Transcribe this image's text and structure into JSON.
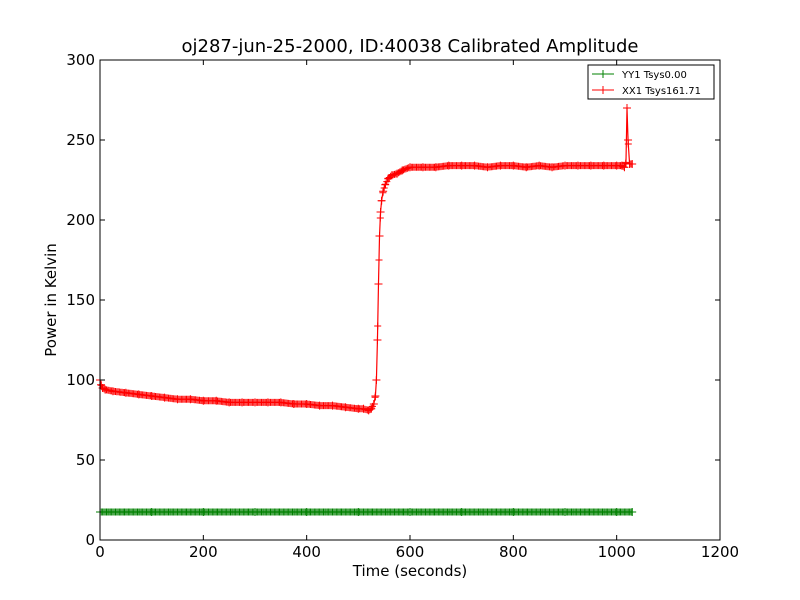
{
  "chart_data": {
    "type": "line",
    "title": "oj287-jun-25-2000, ID:40038 Calibrated Amplitude",
    "xlabel": "Time (seconds)",
    "ylabel": "Power in Kelvin",
    "xlim": [
      0,
      1200
    ],
    "ylim": [
      0,
      300
    ],
    "x_ticks": [
      "0",
      "200",
      "400",
      "600",
      "800",
      "1000",
      "1200"
    ],
    "y_ticks": [
      "0",
      "50",
      "100",
      "150",
      "200",
      "250",
      "300"
    ],
    "grid": false,
    "legend_position": "top-right",
    "marker": "plus",
    "series": [
      {
        "name": "YY1 Tsys0.00",
        "color": "#008000",
        "x": [
          0,
          100,
          200,
          300,
          400,
          500,
          600,
          700,
          800,
          900,
          1000,
          1030
        ],
        "y": [
          17.5,
          17.5,
          17.5,
          17.5,
          17.5,
          17.5,
          17.5,
          17.5,
          17.5,
          17.5,
          17.5,
          17.5
        ]
      },
      {
        "name": "XX1 Tsys161.71",
        "color": "#ff0000",
        "x": [
          0,
          2,
          5,
          10,
          25,
          50,
          75,
          100,
          125,
          150,
          175,
          200,
          225,
          250,
          275,
          300,
          325,
          350,
          375,
          400,
          425,
          450,
          475,
          500,
          510,
          520,
          525,
          530,
          533,
          535,
          537,
          539,
          541,
          543,
          545,
          548,
          552,
          558,
          565,
          575,
          585,
          600,
          625,
          650,
          675,
          700,
          725,
          750,
          775,
          800,
          825,
          850,
          875,
          900,
          925,
          950,
          975,
          1000,
          1010,
          1015,
          1018,
          1020,
          1022,
          1025,
          1030
        ],
        "y": [
          100,
          97,
          95,
          94,
          93,
          92,
          91,
          90,
          89,
          88,
          88,
          87,
          87,
          86,
          86,
          86,
          86,
          86,
          85,
          85,
          84,
          84,
          83,
          82,
          82,
          81,
          82,
          85,
          90,
          100,
          125,
          160,
          190,
          205,
          212,
          218,
          222,
          226,
          228,
          229,
          231,
          233,
          233,
          233,
          234,
          234,
          234,
          233,
          234,
          234,
          233,
          234,
          233,
          234,
          234,
          234,
          234,
          234,
          234,
          233,
          236,
          270,
          250,
          235,
          235
        ]
      }
    ]
  }
}
